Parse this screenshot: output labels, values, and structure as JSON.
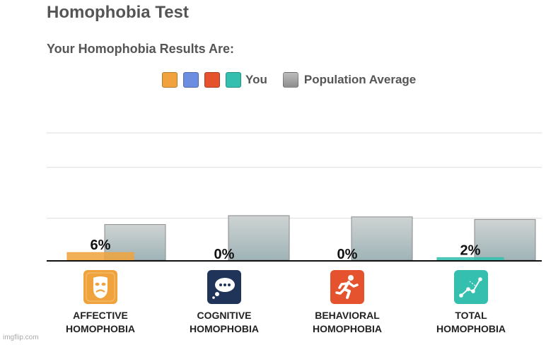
{
  "header": {
    "title": "Homophobia Test",
    "subtitle": "Your Homophobia Results Are:"
  },
  "legend": {
    "you_label": "You",
    "population_label": "Population Average",
    "you_colors": [
      "#f0a33c",
      "#6c8ee0",
      "#e4522e",
      "#35bfae"
    ],
    "population_color": "#9a9a9a"
  },
  "chart_data": {
    "type": "bar",
    "title": "Your Homophobia Results Are:",
    "categories": [
      "AFFECTIVE HOMOPHOBIA",
      "COGNITIVE HOMOPHOBIA",
      "BEHAVIORAL HOMOPHOBIA",
      "TOTAL HOMOPHOBIA"
    ],
    "series": [
      {
        "name": "You",
        "values": [
          6,
          0,
          0,
          2
        ],
        "labels": [
          "6%",
          "0%",
          "0%",
          "2%"
        ]
      },
      {
        "name": "Population Average",
        "values": [
          28,
          35,
          34,
          32
        ]
      }
    ],
    "ylim": [
      0,
      100
    ],
    "grid": true,
    "legend_position": "top-center"
  },
  "categories_display": [
    {
      "line1": "AFFECTIVE",
      "line2": "HOMOPHOBIA",
      "icon": "mask-icon",
      "color": "#f0a33c"
    },
    {
      "line1": "COGNITIVE",
      "line2": "HOMOPHOBIA",
      "icon": "thought-bubble-icon",
      "color": "#1f3458"
    },
    {
      "line1": "BEHAVIORAL",
      "line2": "HOMOPHOBIA",
      "icon": "running-person-icon",
      "color": "#e4522e"
    },
    {
      "line1": "TOTAL",
      "line2": "HOMOPHOBIA",
      "icon": "scatter-graph-icon",
      "color": "#35bfae"
    }
  ],
  "footer": {
    "watermark": "imgflip.com"
  }
}
